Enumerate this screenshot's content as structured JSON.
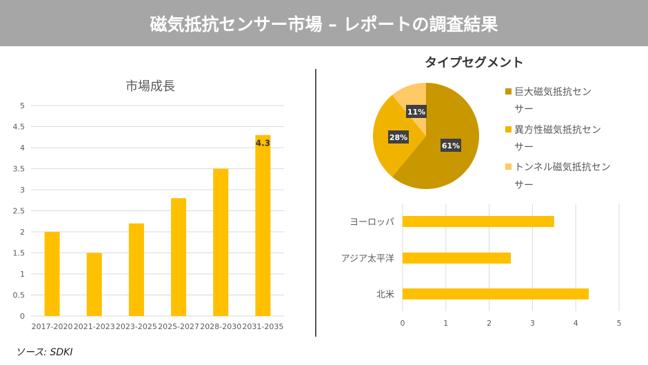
{
  "header": {
    "title": "磁気抵抗センサー市場 – レポートの調査結果"
  },
  "source": "ソース: SDKI",
  "colors": {
    "bar": "#ffc000",
    "pie": [
      "#c99700",
      "#f0b400",
      "#ffc966"
    ],
    "header": "#a6a6a6"
  },
  "chart_data": [
    {
      "type": "bar",
      "title": "市場成長",
      "categories": [
        "2017-2020",
        "2021-2023",
        "2023-2025",
        "2025-2027",
        "2028-2030",
        "2031-2035"
      ],
      "values": [
        2,
        1.5,
        2.2,
        2.8,
        3.5,
        4.3
      ],
      "ylim": [
        0,
        5
      ],
      "yticks": [
        "0",
        "0.5",
        "1",
        "1.5",
        "2",
        "2.5",
        "3",
        "3.5",
        "4",
        "4.5",
        "5"
      ],
      "data_labels": {
        "5": "4.3"
      },
      "grid": true
    },
    {
      "type": "pie",
      "title": "タイプセグメント",
      "labels": [
        "巨大磁気抵抗センサー",
        "異方性磁気抵抗センサー",
        "トンネル磁気抵抗センサー"
      ],
      "values": [
        61,
        28,
        11
      ],
      "data_labels": [
        "61%",
        "28%",
        "11%"
      ],
      "legend": "right"
    },
    {
      "type": "bar",
      "orientation": "horizontal",
      "categories": [
        "ヨーロッパ",
        "アジア太平洋",
        "北米"
      ],
      "values": [
        3.5,
        2.5,
        4.3
      ],
      "xlim": [
        0,
        5
      ],
      "xticks": [
        "0",
        "1",
        "2",
        "3",
        "4",
        "5"
      ],
      "grid": true
    }
  ]
}
